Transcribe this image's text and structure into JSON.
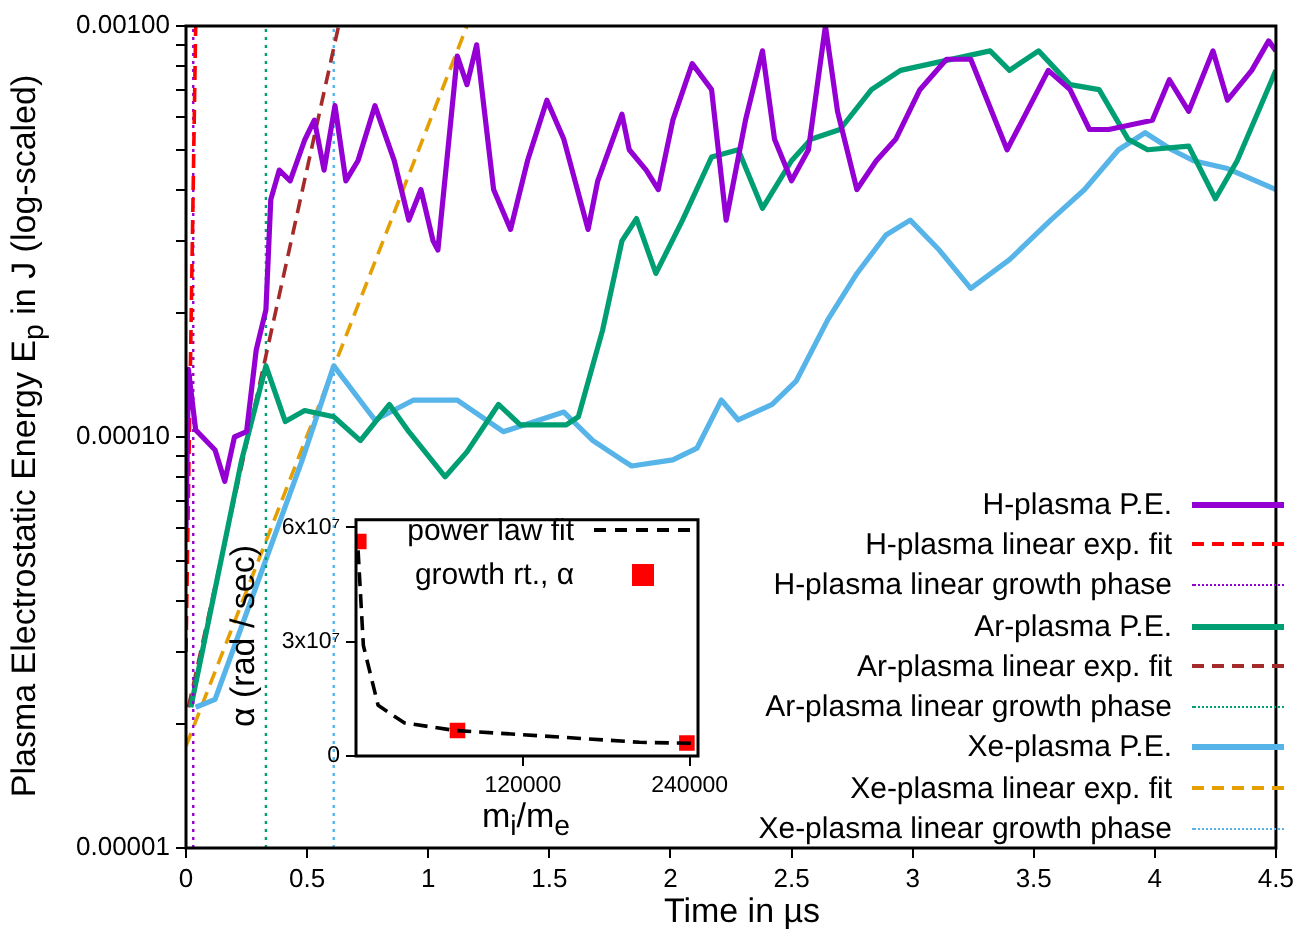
{
  "chart_data": [
    {
      "type": "line",
      "xlabel": "Time in µs",
      "ylabel": "Plasma Electrostatic Energy E$_{p}$ in J (log-scaled)",
      "log": "y",
      "grid": false,
      "legend": "bottom right",
      "xlim": [
        0,
        4.5
      ],
      "ylim": [
        1e-05,
        0.001
      ],
      "xticks": [
        0,
        0.5,
        1,
        1.5,
        2,
        2.5,
        3,
        3.5,
        4,
        4.5
      ],
      "yticks": [
        {
          "value": 1e-05,
          "label": "0.00001"
        },
        {
          "value": 2e-05,
          "label": null
        },
        {
          "value": 3e-05,
          "label": null
        },
        {
          "value": 4e-05,
          "label": null
        },
        {
          "value": 5e-05,
          "label": null
        },
        {
          "value": 6e-05,
          "label": null
        },
        {
          "value": 7e-05,
          "label": null
        },
        {
          "value": 8e-05,
          "label": null
        },
        {
          "value": 9e-05,
          "label": null
        },
        {
          "value": 0.0001,
          "label": "0.00010"
        },
        {
          "value": 0.0002,
          "label": null
        },
        {
          "value": 0.0003,
          "label": null
        },
        {
          "value": 0.0004,
          "label": null
        },
        {
          "value": 0.0005,
          "label": null
        },
        {
          "value": 0.0006,
          "label": null
        },
        {
          "value": 0.0007,
          "label": null
        },
        {
          "value": 0.0008,
          "label": null
        },
        {
          "value": 0.0009,
          "label": null
        },
        {
          "value": 0.001,
          "label": "0.00100"
        }
      ],
      "series": [
        {
          "name": "H-plasma P.E.",
          "color": "#9400d3",
          "line_style": "solid",
          "x": [
            0,
            0.01,
            0.04,
            0.12,
            0.16,
            0.2,
            0.25,
            0.29,
            0.33,
            0.35,
            0.385,
            0.43,
            0.49,
            0.53,
            0.57,
            0.615,
            0.66,
            0.71,
            0.78,
            0.86,
            0.92,
            0.97,
            1.02,
            1.04,
            1.12,
            1.16,
            1.2,
            1.27,
            1.34,
            1.41,
            1.49,
            1.56,
            1.66,
            1.7,
            1.8,
            1.83,
            1.9,
            1.95,
            2.01,
            2.09,
            2.17,
            2.23,
            2.31,
            2.38,
            2.43,
            2.5,
            2.57,
            2.64,
            2.69,
            2.77,
            2.85,
            2.93,
            3.03,
            3.14,
            3.24,
            3.39,
            3.56,
            3.65,
            3.73,
            3.81,
            3.99,
            4.06,
            4.14,
            4.24,
            4.3,
            4.4,
            4.47,
            4.5
          ],
          "values": [
            6e-05,
            0.000146,
            0.000104,
            9.3e-05,
            7.8e-05,
            0.0001,
            0.000103,
            0.000163,
            0.000204,
            0.000378,
            0.000446,
            0.00042,
            0.000528,
            0.00059,
            0.000446,
            0.00064,
            0.00042,
            0.00047,
            0.00064,
            0.00047,
            0.000337,
            0.0004,
            0.0003,
            0.000285,
            0.000845,
            0.00072,
            0.0009,
            0.0004,
            0.00032,
            0.00047,
            0.00066,
            0.00053,
            0.00032,
            0.00042,
            0.00061,
            0.0005,
            0.000446,
            0.0004,
            0.00059,
            0.00081,
            0.0007,
            0.000337,
            0.00059,
            0.00087,
            0.00053,
            0.00042,
            0.0005,
            0.001,
            0.00062,
            0.0004,
            0.00047,
            0.00053,
            0.0007,
            0.00083,
            0.00083,
            0.0005,
            0.00078,
            0.0007,
            0.00056,
            0.00056,
            0.00059,
            0.00074,
            0.00062,
            0.00087,
            0.00066,
            0.00078,
            0.00092,
            0.00087
          ]
        },
        {
          "name": "H-plasma linear exp. fit",
          "color": "#ff0000",
          "line_style": "dashed",
          "x": [
            0,
            0.04
          ],
          "values": [
            3e-05,
            0.001
          ]
        },
        {
          "name": "H-plasma linear growth phase",
          "color": "#9400d3",
          "line_style": "dotted",
          "x": [
            0.03,
            0.03
          ],
          "values": [
            1e-05,
            0.001
          ]
        },
        {
          "name": "Ar-plasma P.E.",
          "color": "#009e73",
          "line_style": "solid",
          "x": [
            0.02,
            0.23,
            0.33,
            0.41,
            0.49,
            0.61,
            0.72,
            0.84,
            0.92,
            1.07,
            1.16,
            1.29,
            1.38,
            1.57,
            1.62,
            1.72,
            1.8,
            1.86,
            1.94,
            2.05,
            2.17,
            2.28,
            2.38,
            2.5,
            2.58,
            2.7,
            2.83,
            2.95,
            3.32,
            3.4,
            3.52,
            3.65,
            3.77,
            3.89,
            3.97,
            4.14,
            4.25,
            4.34,
            4.5
          ],
          "values": [
            2.2e-05,
            8.8e-05,
            0.000149,
            0.000109,
            0.000116,
            0.000112,
            9.8e-05,
            0.00012,
            0.000103,
            8e-05,
            9.2e-05,
            0.00012,
            0.000107,
            0.000107,
            0.000112,
            0.000182,
            0.0003,
            0.00034,
            0.00025,
            0.000337,
            0.00048,
            0.0005,
            0.00036,
            0.00047,
            0.00053,
            0.00056,
            0.0007,
            0.00078,
            0.00087,
            0.00078,
            0.00087,
            0.00072,
            0.0007,
            0.00053,
            0.0005,
            0.00051,
            0.00038,
            0.00047,
            0.00078
          ]
        },
        {
          "name": "Ar-plasma linear exp. fit",
          "color": "#a52a2a",
          "line_style": "dashed",
          "x": [
            0.01,
            0.63
          ],
          "values": [
            2.2e-05,
            0.001
          ]
        },
        {
          "name": "Ar-plasma linear growth phase",
          "color": "#009e73",
          "line_style": "dotted",
          "x": [
            0.33,
            0.33
          ],
          "values": [
            1e-05,
            0.001
          ]
        },
        {
          "name": "Xe-plasma P.E.",
          "color": "#56b4e9",
          "line_style": "solid",
          "x": [
            0.04,
            0.12,
            0.48,
            0.61,
            0.78,
            0.94,
            1.12,
            1.31,
            1.56,
            1.68,
            1.8,
            1.84,
            2.01,
            2.11,
            2.21,
            2.28,
            2.42,
            2.52,
            2.65,
            2.77,
            2.89,
            2.99,
            3.11,
            3.24,
            3.4,
            3.57,
            3.71,
            3.85,
            3.96,
            4.07,
            4.16,
            4.3,
            4.5
          ],
          "values": [
            2.2e-05,
            2.3e-05,
            8.8e-05,
            0.000149,
            0.00011,
            0.000123,
            0.000123,
            0.000103,
            0.000115,
            9.8e-05,
            8.8e-05,
            8.5e-05,
            8.8e-05,
            9.4e-05,
            0.000123,
            0.00011,
            0.00012,
            0.000137,
            0.000193,
            0.00025,
            0.00031,
            0.000337,
            0.000285,
            0.00023,
            0.00027,
            0.000337,
            0.0004,
            0.0005,
            0.00055,
            0.0005,
            0.00047,
            0.00045,
            0.0004
          ]
        },
        {
          "name": "Xe-plasma linear exp. fit",
          "color": "#e69f00",
          "line_style": "dashed",
          "x": [
            0,
            1.16
          ],
          "values": [
            1.77e-05,
            0.001
          ]
        },
        {
          "name": "Xe-plasma linear growth phase",
          "color": "#56b4e9",
          "line_style": "dotted",
          "x": [
            0.61,
            0.61
          ],
          "values": [
            1e-05,
            0.001
          ]
        }
      ]
    },
    {
      "type": "scatter",
      "xlabel": "m$_{i}$/m$_{e}$",
      "ylabel": "α  (rad / sec)",
      "grid": false,
      "legend": "top",
      "xlim": [
        0,
        246000
      ],
      "ylim": [
        0,
        62000000
      ],
      "xticks": [
        120000,
        240000
      ],
      "yticks": [
        0,
        {
          "value": 30000000,
          "label": "3x10⁷"
        },
        {
          "value": 60000000,
          "label": "6x10⁷"
        }
      ],
      "series": [
        {
          "name": "power law fit",
          "type": "line",
          "color": "#000000",
          "line_style": "dashed",
          "x": [
            1500,
            5300,
            15900,
            34700,
            71000,
            120000,
            204000,
            245000
          ],
          "values": [
            54000000,
            29000000,
            13300000,
            8700000,
            6700000,
            5600000,
            3600000,
            3300000
          ]
        },
        {
          "name": "growth rt., α",
          "type": "scatter",
          "color": "#ff0000",
          "marker": "square",
          "x": [
            2000,
            73000,
            238000
          ],
          "values": [
            56300000,
            6700000,
            3400000
          ]
        }
      ]
    }
  ]
}
